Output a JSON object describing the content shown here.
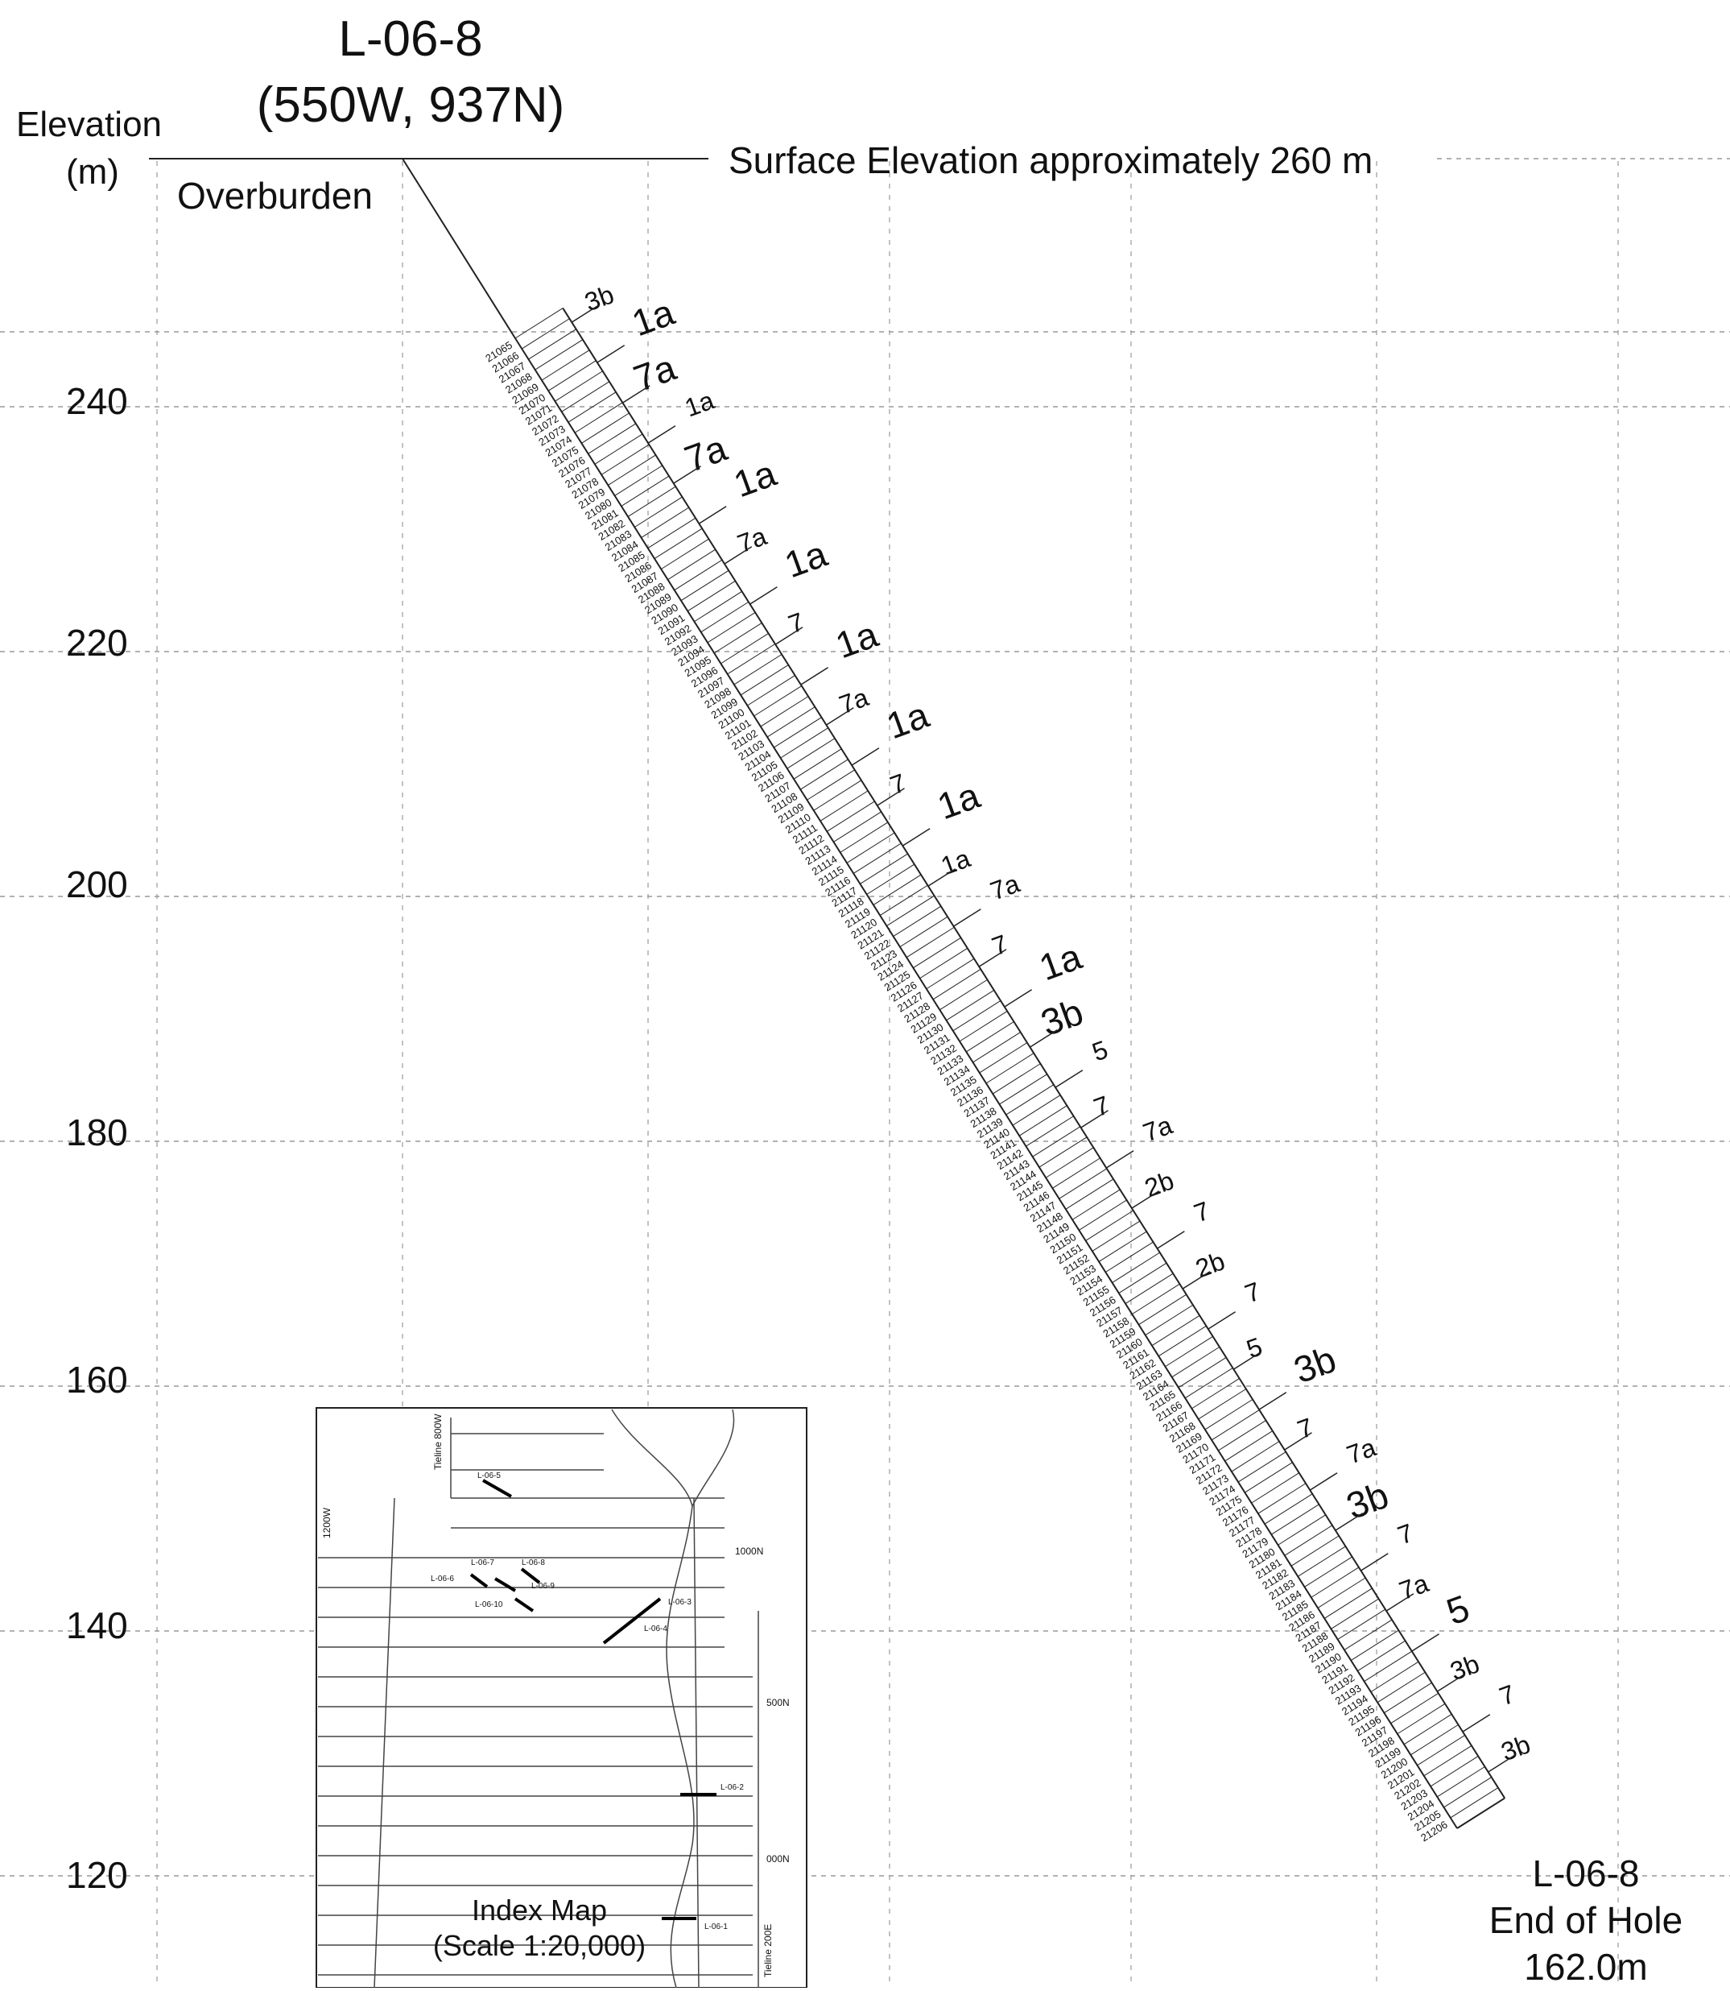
{
  "title": {
    "hole_id": "L-06-8",
    "coords": "(550W, 937N)"
  },
  "y_axis": {
    "label": "Elevation",
    "unit": "(m)",
    "ticks": [
      240,
      220,
      200,
      180,
      160,
      140,
      120
    ]
  },
  "surface": {
    "label": "Surface Elevation approximately 260 m",
    "overburden": "Overburden"
  },
  "end_of_hole": {
    "hole_id": "L-06-8",
    "label": "End of Hole",
    "depth": "162.0m"
  },
  "samples": {
    "first": 21065,
    "last": 21206
  },
  "lithology_codes": [
    "3b",
    "1a",
    "7a",
    "1a",
    "7a",
    "1a",
    "7a",
    "1a",
    "7",
    "1a",
    "7a",
    "1a",
    "7",
    "1a",
    "1a",
    "7a",
    "7",
    "1a",
    "3b",
    "5",
    "7",
    "7a",
    "2b",
    "7",
    "2b",
    "7",
    "5",
    "3b",
    "7",
    "7a",
    "3b",
    "7",
    "7a",
    "5",
    "3b",
    "7",
    "3b"
  ],
  "index_map": {
    "caption": "Index Map",
    "scale": "(Scale 1:20,000)",
    "grid_labels": [
      "Tieline 800W",
      "1200W",
      "1000N",
      "500N",
      "000N",
      "Tieline 200E"
    ],
    "holes": [
      "L-06-5",
      "L-06-7",
      "L-06-8",
      "L-06-6",
      "L-06-9",
      "L-06-10",
      "L-06-3",
      "L-06-4",
      "L-06-2",
      "L-06-1"
    ]
  },
  "colors": {
    "line": "#222222",
    "grid": "#999999"
  }
}
